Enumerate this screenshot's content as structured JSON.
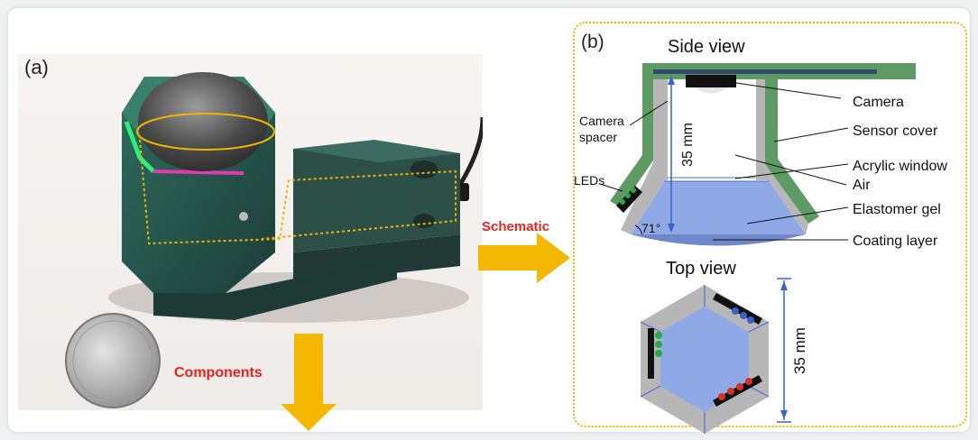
{
  "panel_a": {
    "label": "(a)",
    "schematic_label": "Schematic",
    "components_label": "Components"
  },
  "panel_b": {
    "label": "(b)",
    "side_view_title": "Side view",
    "top_view_title": "Top view",
    "dimension_side": "35 mm",
    "dimension_top": "35 mm",
    "angle": "71°",
    "labels": {
      "camera": "Camera",
      "sensor_cover": "Sensor cover",
      "acrylic_window": "Acrylic window",
      "air": "Air",
      "elastomer_gel": "Elastomer gel",
      "coating_layer": "Coating layer",
      "camera_spacer_1": "Camera",
      "camera_spacer_2": "spacer",
      "leds": "LEDs"
    }
  },
  "colors": {
    "cover_green": "#5e9a64",
    "gel_blue": "#8fa9e6",
    "spacer_gray": "#b7b7b7",
    "arrow_orange": "#f5b800",
    "text_red": "#e8231f",
    "dimension_blue": "#3a63c9"
  }
}
